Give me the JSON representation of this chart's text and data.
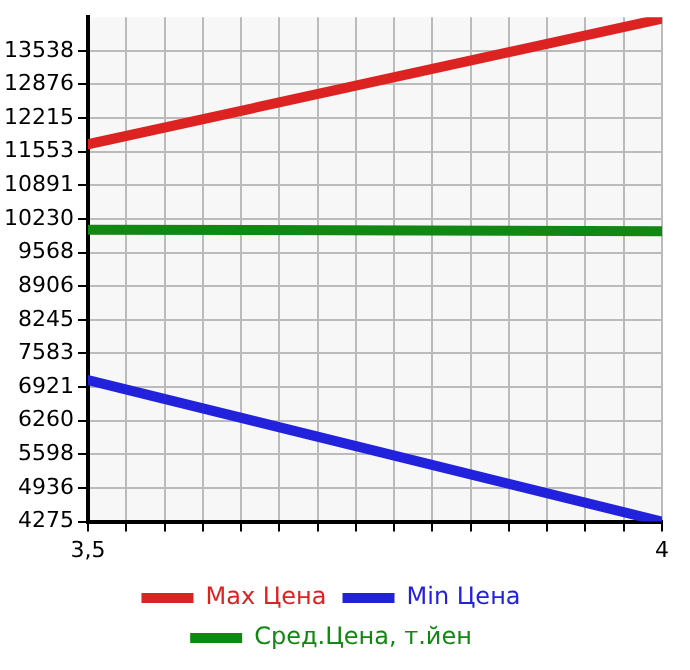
{
  "chart_data": {
    "type": "line",
    "x": [
      3.5,
      4
    ],
    "series": [
      {
        "name": "Max Цена",
        "color": "#dd2222",
        "values": [
          11700,
          14170
        ]
      },
      {
        "name": "Min Цена",
        "color": "#2222dd",
        "values": [
          7060,
          4275
        ]
      },
      {
        "name": "Сред.Цена, т.йен",
        "color": "#118811",
        "values": [
          10020,
          9990
        ]
      }
    ],
    "xlim": [
      3.5,
      4
    ],
    "xticks": [
      {
        "value": 3.5,
        "label": "3,5"
      },
      {
        "value": 3.5333,
        "label": null
      },
      {
        "value": 3.5667,
        "label": null
      },
      {
        "value": 3.6,
        "label": null
      },
      {
        "value": 3.6333,
        "label": null
      },
      {
        "value": 3.6667,
        "label": null
      },
      {
        "value": 3.7,
        "label": null
      },
      {
        "value": 3.7333,
        "label": null
      },
      {
        "value": 3.7667,
        "label": null
      },
      {
        "value": 3.8,
        "label": null
      },
      {
        "value": 3.8333,
        "label": null
      },
      {
        "value": 3.8667,
        "label": null
      },
      {
        "value": 3.9,
        "label": null
      },
      {
        "value": 3.9333,
        "label": null
      },
      {
        "value": 3.9667,
        "label": null
      },
      {
        "value": 4,
        "label": "4"
      }
    ],
    "ylim": [
      4275,
      14200
    ],
    "yticks": [
      4275,
      4936,
      5598,
      6260,
      6921,
      7583,
      8245,
      8906,
      9568,
      10230,
      10891,
      11553,
      12215,
      12876,
      13538
    ],
    "grid": true,
    "legend": "bottom",
    "marker": "none",
    "line_style": "solid"
  }
}
